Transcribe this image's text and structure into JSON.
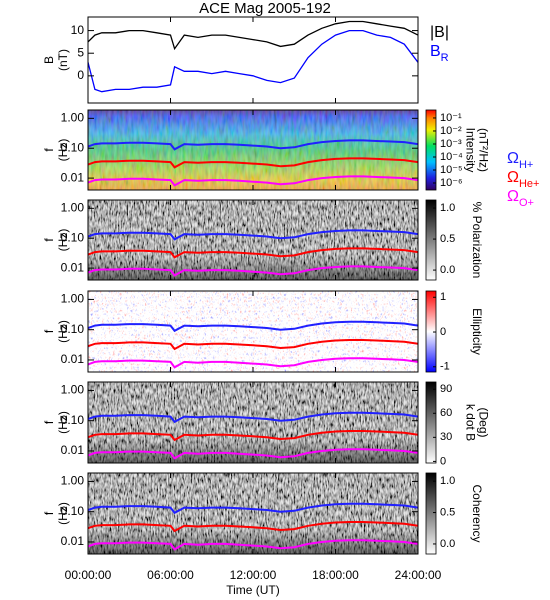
{
  "title": "ACE Mag 2005-192",
  "time": {
    "x": [
      0,
      0.5,
      1,
      2,
      3,
      4,
      5,
      6,
      6.3,
      7,
      8,
      9,
      10,
      11,
      12,
      13,
      14,
      15,
      16,
      17,
      18,
      19,
      20,
      21,
      22,
      23,
      24
    ],
    "xlim": [
      0,
      24
    ],
    "xticks": [
      {
        "value": 0,
        "label": "00:00:00"
      },
      {
        "value": 6,
        "label": "06:00:00"
      },
      {
        "value": 12,
        "label": "12:00:00"
      },
      {
        "value": 18,
        "label": "18:00:00"
      },
      {
        "value": 24,
        "label": "24:00:00"
      }
    ],
    "xlabel": "Time (UT)"
  },
  "gyrofrequencies": [
    {
      "name": "Ω",
      "sub": "H+",
      "color": "#2020ff",
      "values": [
        0.114,
        0.137,
        0.145,
        0.145,
        0.153,
        0.153,
        0.145,
        0.137,
        0.092,
        0.137,
        0.13,
        0.137,
        0.137,
        0.13,
        0.122,
        0.114,
        0.099,
        0.107,
        0.137,
        0.16,
        0.175,
        0.183,
        0.183,
        0.175,
        0.168,
        0.16,
        0.137
      ]
    },
    {
      "name": "Ω",
      "sub": "He+",
      "color": "#ff0000",
      "values": [
        0.0285,
        0.0343,
        0.0362,
        0.0362,
        0.0381,
        0.0381,
        0.0362,
        0.0343,
        0.023,
        0.0343,
        0.0324,
        0.0343,
        0.0343,
        0.0324,
        0.0305,
        0.0285,
        0.0248,
        0.0267,
        0.0343,
        0.04,
        0.0438,
        0.0458,
        0.0458,
        0.0438,
        0.0419,
        0.04,
        0.0343
      ]
    },
    {
      "name": "Ω",
      "sub": "O+",
      "color": "#ff00ff",
      "values": [
        0.0071,
        0.0086,
        0.009,
        0.009,
        0.0095,
        0.0095,
        0.009,
        0.0086,
        0.0057,
        0.0086,
        0.0081,
        0.0086,
        0.0086,
        0.0081,
        0.0076,
        0.0071,
        0.0062,
        0.0067,
        0.0086,
        0.01,
        0.0109,
        0.0114,
        0.0114,
        0.0109,
        0.0105,
        0.01,
        0.0086
      ]
    }
  ],
  "chart_data": [
    {
      "type": "line",
      "ylabel": [
        "B",
        "(nT)"
      ],
      "ylim": [
        -6,
        13
      ],
      "yticks": [
        0,
        5,
        10
      ],
      "series": [
        {
          "name": "|B|",
          "color": "#000000",
          "values": [
            7.5,
            9,
            9.5,
            9.5,
            10,
            10,
            9.5,
            9,
            6,
            9,
            8.5,
            9,
            9,
            8.5,
            8,
            7.5,
            6.5,
            7,
            9,
            10.5,
            11.5,
            12,
            12,
            11.5,
            11,
            10.5,
            9
          ]
        },
        {
          "name": "B",
          "sub": "R",
          "color": "#0000ff",
          "values": [
            3,
            -3,
            -3.5,
            -3,
            -3,
            -2.5,
            -2.5,
            -2,
            2,
            1,
            1,
            0.5,
            1,
            0.5,
            0,
            -1,
            -1.5,
            -0.5,
            4,
            7,
            9,
            10,
            10,
            9,
            8.5,
            7,
            3
          ]
        }
      ]
    },
    {
      "type": "spectrogram",
      "ylabel": [
        "f",
        "(Hz)"
      ],
      "log": true,
      "ylim": [
        0.004,
        1.9
      ],
      "yticks": [
        {
          "value": 1,
          "label": "1.00"
        },
        {
          "value": 0.1,
          "label": "0.10"
        },
        {
          "value": 0.01,
          "label": "0.01"
        }
      ],
      "colorbar": {
        "label": [
          "Intensity",
          "(nT²/Hz)"
        ],
        "scale": "rainbow",
        "log": true,
        "clim": [
          2.9e-07,
          0.41
        ],
        "ticks": [
          {
            "value": 0.1,
            "label": "10⁻¹"
          },
          {
            "value": 0.01,
            "label": "10⁻²"
          },
          {
            "value": 0.001,
            "label": "10⁻³"
          },
          {
            "value": 0.0001,
            "label": "10⁻⁴"
          },
          {
            "value": 1e-05,
            "label": "10⁻⁵"
          },
          {
            "value": 1e-06,
            "label": "10⁻⁶"
          }
        ]
      }
    },
    {
      "type": "spectrogram",
      "ylabel": [
        "f",
        "(Hz)"
      ],
      "log": true,
      "ylim": [
        0.004,
        1.9
      ],
      "yticks": [
        {
          "value": 1,
          "label": "1.00"
        },
        {
          "value": 0.1,
          "label": "0.10"
        },
        {
          "value": 0.01,
          "label": "0.01"
        }
      ],
      "colorbar": {
        "label": [
          "% Polarization"
        ],
        "scale": "gray",
        "log": false,
        "clim": [
          -0.16,
          1.13
        ],
        "ticks": [
          {
            "value": 0,
            "label": "0.0"
          },
          {
            "value": 0.5,
            "label": "0.5"
          },
          {
            "value": 1,
            "label": "1.0"
          }
        ]
      }
    },
    {
      "type": "spectrogram",
      "ylabel": [
        "f",
        "(Hz)"
      ],
      "log": true,
      "ylim": [
        0.004,
        1.9
      ],
      "yticks": [
        {
          "value": 1,
          "label": "1.00"
        },
        {
          "value": 0.1,
          "label": "0.10"
        },
        {
          "value": 0.01,
          "label": "0.01"
        }
      ],
      "colorbar": {
        "label": [
          "Ellipticity"
        ],
        "scale": "bwr",
        "log": false,
        "clim": [
          -1.15,
          1.18
        ],
        "ticks": [
          -1,
          0,
          1
        ]
      }
    },
    {
      "type": "spectrogram",
      "ylabel": [
        "f",
        "(Hz)"
      ],
      "log": true,
      "ylim": [
        0.004,
        1.9
      ],
      "yticks": [
        {
          "value": 1,
          "label": "1.00"
        },
        {
          "value": 0.1,
          "label": "0.10"
        },
        {
          "value": 0.01,
          "label": "0.01"
        }
      ],
      "colorbar": {
        "label": [
          "k dot B",
          "(Deg)"
        ],
        "scale": "gray",
        "log": false,
        "clim": [
          -2,
          99
        ],
        "ticks": [
          0,
          30,
          60,
          90
        ]
      }
    },
    {
      "type": "spectrogram",
      "ylabel": [
        "f",
        "(Hz)"
      ],
      "log": true,
      "ylim": [
        0.004,
        1.9
      ],
      "yticks": [
        {
          "value": 1,
          "label": "1.00"
        },
        {
          "value": 0.1,
          "label": "0.10"
        },
        {
          "value": 0.01,
          "label": "0.01"
        }
      ],
      "colorbar": {
        "label": [
          "Coherency"
        ],
        "scale": "gray",
        "log": false,
        "clim": [
          -0.16,
          1.13
        ],
        "ticks": [
          {
            "value": 0,
            "label": "0.0"
          },
          {
            "value": 0.5,
            "label": "0.5"
          },
          {
            "value": 1,
            "label": "1.0"
          }
        ]
      }
    }
  ]
}
